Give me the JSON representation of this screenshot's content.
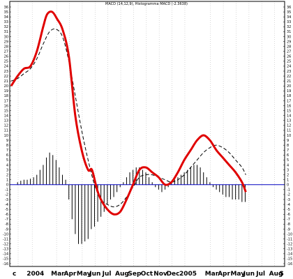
{
  "chart_data": {
    "type": "line",
    "title": "MACD (14,12,9), Histogramma MACD (-2.3638)",
    "ylim": [
      -16,
      37
    ],
    "y_ticks": [
      36,
      35,
      34,
      33,
      32,
      31,
      30,
      29,
      28,
      27,
      26,
      25,
      24,
      23,
      22,
      21,
      20,
      19,
      18,
      17,
      16,
      15,
      14,
      13,
      12,
      11,
      10,
      9,
      8,
      7,
      6,
      5,
      4,
      3,
      2,
      1,
      0,
      -1,
      -2,
      -3,
      -4,
      -5,
      -6,
      -7,
      -8,
      -9,
      -10,
      -11,
      -12,
      -13,
      -14,
      -15,
      -16
    ],
    "x_labels": [
      {
        "label": "c",
        "x": 0
      },
      {
        "label": "2004",
        "x": 1.1
      },
      {
        "label": "Mar",
        "x": 3
      },
      {
        "label": "Apr",
        "x": 4
      },
      {
        "label": "May",
        "x": 5
      },
      {
        "label": "Jun",
        "x": 6
      },
      {
        "label": "Jul",
        "x": 7
      },
      {
        "label": "Aug",
        "x": 8
      },
      {
        "label": "Sep",
        "x": 9
      },
      {
        "label": "Oct",
        "x": 10
      },
      {
        "label": "Nov",
        "x": 11
      },
      {
        "label": "Dec",
        "x": 12
      },
      {
        "label": "2005",
        "x": 13
      },
      {
        "label": "Mar",
        "x": 15
      },
      {
        "label": "Apr",
        "x": 16
      },
      {
        "label": "May",
        "x": 17
      },
      {
        "label": "Jun",
        "x": 18
      },
      {
        "label": "Jul",
        "x": 19
      },
      {
        "label": "Aug",
        "x": 20
      },
      {
        "label": "S",
        "x": 20.8
      }
    ],
    "xlim": [
      0,
      21
    ],
    "macd": {
      "color": "#e00000",
      "x": [
        0,
        0.5,
        1,
        1.5,
        2,
        2.5,
        2.8,
        3.2,
        3.6,
        4,
        4.5,
        5,
        5.5,
        6,
        6.3,
        6.7,
        7,
        7.5,
        8,
        8.5,
        9,
        9.5,
        10,
        10.5,
        11,
        11.5,
        12,
        12.5,
        13,
        13.5,
        14,
        14.5,
        15,
        15.5,
        16,
        16.5,
        17,
        17.5,
        18,
        18.3
      ],
      "y": [
        20,
        22,
        23.5,
        24,
        27,
        32,
        34.5,
        35,
        33.5,
        31.5,
        26,
        14,
        7,
        3,
        3,
        -1,
        -3,
        -5,
        -6,
        -5.5,
        -3,
        0,
        3,
        3.5,
        2.5,
        1.5,
        0,
        0.5,
        2.5,
        5,
        7,
        9,
        10,
        9,
        7,
        5.5,
        4,
        2.5,
        0.5,
        -1.5
      ]
    },
    "signal": {
      "color": "#000000",
      "x": [
        0,
        0.5,
        1,
        1.5,
        2,
        2.5,
        3,
        3.5,
        4,
        4.5,
        5,
        5.5,
        6,
        6.5,
        7,
        7.5,
        8,
        8.5,
        9,
        9.5,
        10,
        10.5,
        11,
        11.5,
        12,
        12.5,
        13,
        13.5,
        14,
        14.5,
        15,
        15.5,
        16,
        16.5,
        17,
        17.5,
        18,
        18.3
      ],
      "y": [
        21,
        21.5,
        22.5,
        23.5,
        25.5,
        28.5,
        31,
        31.5,
        30,
        25,
        18,
        11,
        5,
        0,
        -3,
        -4,
        -4.5,
        -4,
        -2.5,
        -0.5,
        1.5,
        2,
        2,
        1.5,
        1,
        0.5,
        1,
        2,
        3.5,
        5,
        6.5,
        7.5,
        8,
        7.5,
        6.5,
        5,
        3.5,
        2
      ]
    },
    "histogram": {
      "color": "#000000",
      "x": [
        0.5,
        0.75,
        1,
        1.25,
        1.5,
        1.75,
        2,
        2.25,
        2.5,
        2.75,
        3,
        3.25,
        3.5,
        3.75,
        4,
        4.25,
        4.5,
        4.75,
        5,
        5.25,
        5.5,
        5.75,
        6,
        6.25,
        6.5,
        6.75,
        7,
        7.25,
        7.5,
        7.75,
        8,
        8.25,
        8.5,
        8.75,
        9,
        9.25,
        9.5,
        9.75,
        10,
        10.25,
        10.5,
        10.75,
        11,
        11.25,
        11.5,
        11.75,
        12,
        12.25,
        12.5,
        12.75,
        13,
        13.25,
        13.5,
        13.75,
        14,
        14.25,
        14.5,
        14.75,
        15,
        15.25,
        15.5,
        15.75,
        16,
        16.25,
        16.5,
        16.75,
        17,
        17.25,
        17.5,
        17.75,
        18,
        18.25
      ],
      "y": [
        0.5,
        0.8,
        1,
        1,
        1.2,
        1.5,
        2,
        3,
        4,
        5.5,
        6.5,
        6,
        5,
        3.5,
        2,
        1,
        -3,
        -7,
        -10,
        -12,
        -12,
        -11.5,
        -11,
        -9,
        -8.5,
        -7.5,
        -6.5,
        -5.5,
        -4,
        -3,
        -2.5,
        -1.5,
        -0.5,
        0.5,
        1.5,
        2.5,
        3,
        3.5,
        3.5,
        3,
        2.5,
        1.5,
        0.5,
        -0.5,
        -1,
        -1.5,
        -1,
        -0.5,
        0.5,
        1,
        1.5,
        2,
        2.5,
        3,
        3.5,
        4,
        4,
        3.5,
        2.5,
        1.5,
        0.5,
        -0.5,
        -1,
        -1.5,
        -2,
        -2.5,
        -2.5,
        -3,
        -3,
        -3,
        -3.5,
        -3.5
      ]
    },
    "zero_line_color": "#0000c0",
    "grid": true
  }
}
